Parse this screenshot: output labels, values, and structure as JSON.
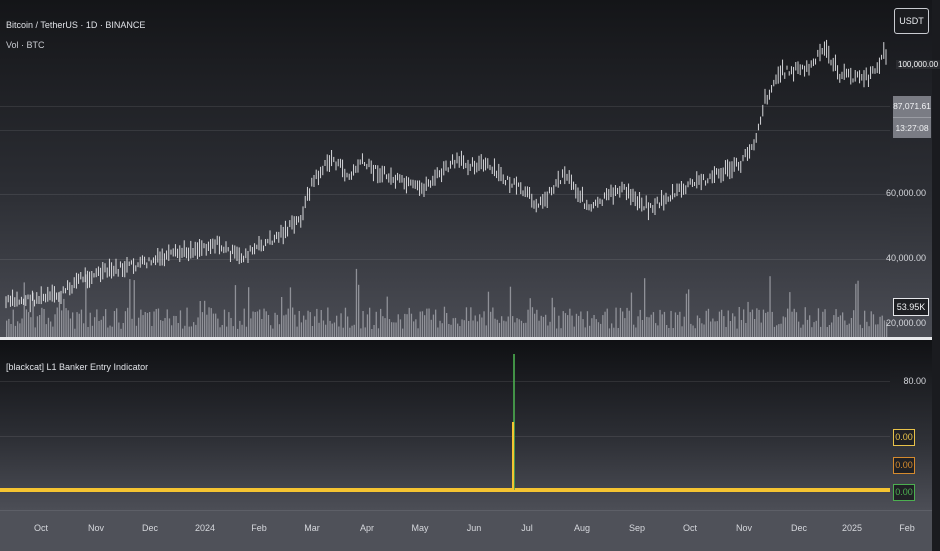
{
  "chart": {
    "title": "Bitcoin / TetherUS · 1D · BINANCE",
    "volume_title": "Vol · BTC",
    "currency": "USDT",
    "ghost_label": "100,000.00",
    "last_price": "87,071.61",
    "countdown": "13:27:08",
    "volume_value": "53.95K",
    "price_axis": [
      "60,000.00",
      "40,000.00",
      "20,000.00"
    ],
    "colors": {
      "candle": "#e8e9ec",
      "volume": "#a9abb2",
      "price_tag": "#7a7c84"
    }
  },
  "indicator": {
    "title": "[blackcat] L1 Banker Entry Indicator",
    "axis_label": "80.00",
    "values": [
      {
        "label": "0.00",
        "color": "#e8c24a"
      },
      {
        "label": "0.00",
        "color": "#d48a2e"
      },
      {
        "label": "0.00",
        "color": "#4caf50"
      }
    ],
    "colors": {
      "line": "#f5c431",
      "spike": "#4caf50"
    }
  },
  "time_axis": {
    "labels": [
      "Oct",
      "Nov",
      "Dec",
      "2024",
      "Feb",
      "Mar",
      "Apr",
      "May",
      "Jun",
      "Jul",
      "Aug",
      "Sep",
      "Oct",
      "Nov",
      "Dec",
      "2025",
      "Feb"
    ]
  }
}
